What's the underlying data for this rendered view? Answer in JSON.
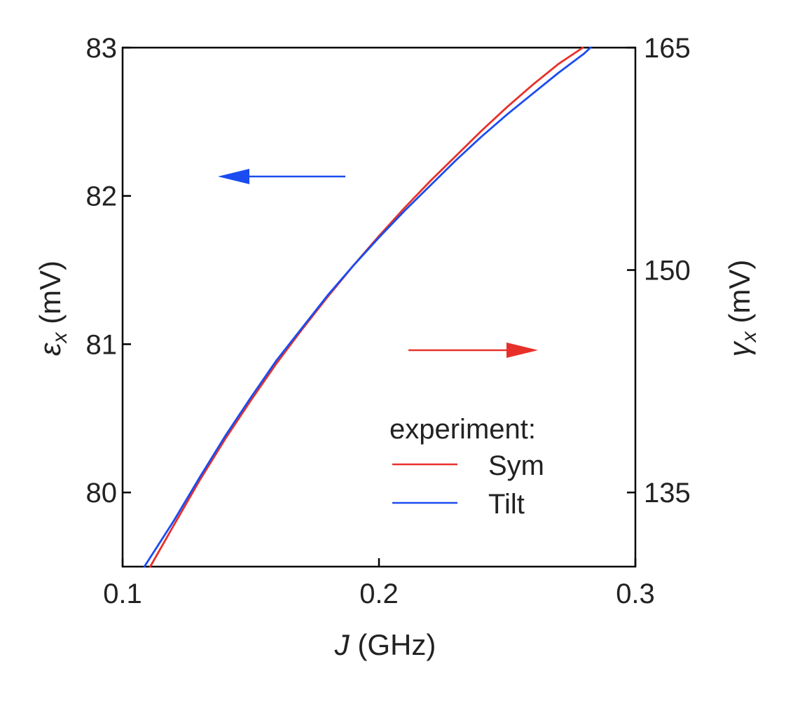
{
  "chart_data": {
    "type": "line",
    "xlabel_symbol": "J",
    "xlabel_unit": " (GHz)",
    "ylabel_left_symbol": "ε",
    "ylabel_left_sub": "x",
    "ylabel_left_unit": " (mV)",
    "ylabel_right_symbol": "γ",
    "ylabel_right_sub": "x",
    "ylabel_right_unit": " (mV)",
    "xlim": [
      0.1,
      0.3
    ],
    "ylim_left": [
      79.5,
      83
    ],
    "ylim_right": [
      130,
      165
    ],
    "x_ticks": [
      "0.1",
      "0.2",
      "0.3"
    ],
    "y_left_ticks": [
      "80",
      "81",
      "82",
      "83"
    ],
    "y_right_ticks": [
      "135",
      "150",
      "165"
    ],
    "legend": {
      "title": "experiment:",
      "placement": "lower-right"
    },
    "arrows": [
      {
        "points_to": "left",
        "color": "#1a4cf0"
      },
      {
        "points_to": "right",
        "color": "#e8302a"
      }
    ],
    "series": [
      {
        "name": "Sym",
        "color": "#e8302a",
        "axis": "left",
        "x": [
          0.1108,
          0.12,
          0.13,
          0.14,
          0.15,
          0.16,
          0.17,
          0.18,
          0.19,
          0.2,
          0.21,
          0.22,
          0.23,
          0.24,
          0.25,
          0.26,
          0.27,
          0.2795
        ],
        "y": [
          79.5,
          79.78,
          80.08,
          80.36,
          80.62,
          80.87,
          81.1,
          81.32,
          81.53,
          81.73,
          81.92,
          82.1,
          82.27,
          82.44,
          82.6,
          82.75,
          82.89,
          83.0
        ]
      },
      {
        "name": "Tilt",
        "color": "#1a4cf0",
        "axis": "left",
        "x": [
          0.1085,
          0.12,
          0.13,
          0.14,
          0.15,
          0.16,
          0.17,
          0.18,
          0.19,
          0.2,
          0.21,
          0.22,
          0.23,
          0.24,
          0.25,
          0.26,
          0.27,
          0.28,
          0.2825
        ],
        "y": [
          79.5,
          79.81,
          80.1,
          80.38,
          80.64,
          80.89,
          81.11,
          81.33,
          81.53,
          81.72,
          81.9,
          82.07,
          82.24,
          82.4,
          82.55,
          82.69,
          82.83,
          82.96,
          83.0
        ]
      }
    ]
  }
}
